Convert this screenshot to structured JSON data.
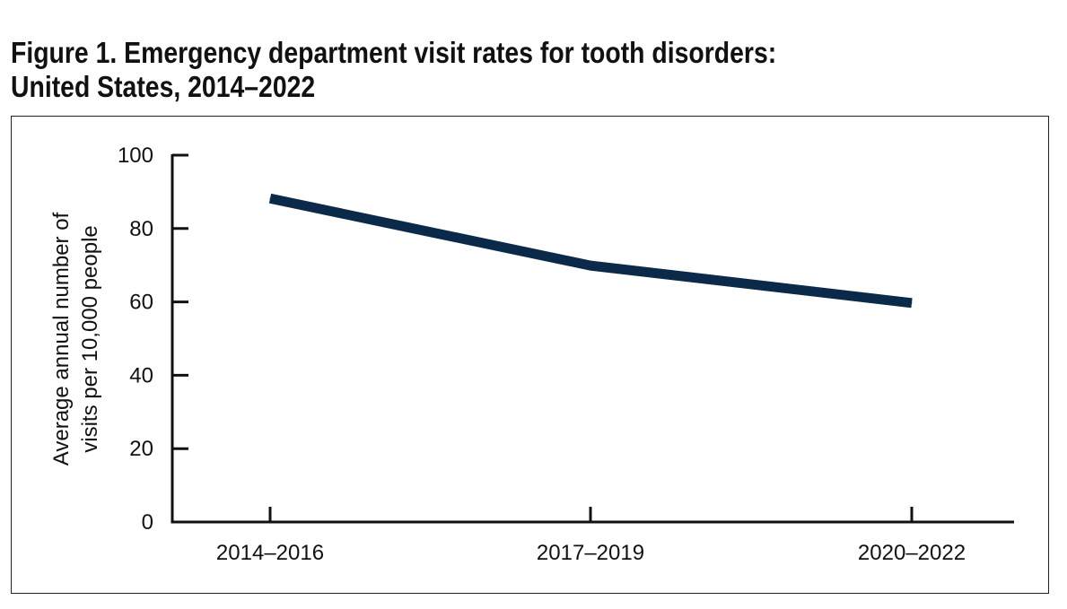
{
  "figure": {
    "title_line1": "Figure 1. Emergency department visit rates for tooth disorders:",
    "title_line2": "United States, 2014–2022"
  },
  "colors": {
    "line": "#0b2a4a",
    "axis": "#111111"
  },
  "chart_data": {
    "type": "line",
    "title": "Figure 1. Emergency department visit rates for tooth disorders: United States, 2014–2022",
    "categories": [
      "2014–2016",
      "2017–2019",
      "2020–2022"
    ],
    "series": [
      {
        "values": [
          88.2,
          69.9,
          59.7
        ]
      }
    ],
    "ylabel_line1": "Average annual number of",
    "ylabel_line2": "visits per 10,000 people",
    "xlabel": "",
    "ylim": [
      0,
      100
    ],
    "yticks": [
      0,
      20,
      40,
      60,
      80,
      100
    ],
    "grid": false,
    "legend": "none"
  }
}
